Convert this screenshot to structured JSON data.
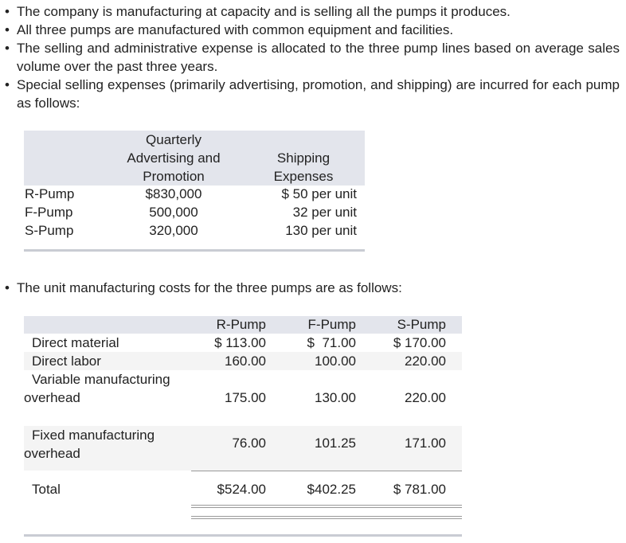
{
  "bullets": [
    "The company is manufacturing at capacity and is selling all the pumps it produces.",
    "All three pumps are manufactured with common equipment and facilities.",
    "The selling and administrative expense is allocated to the three pump lines based on average sales volume over the past three years.",
    "Special selling expenses (primarily advertising, promotion, and shipping) are incurred for each pump as follows:"
  ],
  "table1": {
    "headers": [
      "Quarterly Advertising and Promotion",
      "Shipping Expenses"
    ],
    "rows": [
      [
        "R-Pump",
        "$830,000",
        "$ 50 per unit"
      ],
      [
        "F-Pump",
        "500,000",
        "32 per unit"
      ],
      [
        "S-Pump",
        "320,000",
        "130 per unit"
      ]
    ]
  },
  "bullet5": "The unit manufacturing costs for the three pumps are as follows:",
  "table2": {
    "headers": [
      "R-Pump",
      "F-Pump",
      "S-Pump"
    ],
    "rows": [
      [
        "Direct material",
        "$ 113.00",
        "$  71.00",
        "$ 170.00"
      ],
      [
        "Direct labor",
        "160.00",
        "100.00",
        "220.00"
      ],
      [
        "Variable manufacturing overhead",
        "175.00",
        "130.00",
        "220.00"
      ],
      [
        "Fixed manufacturing overhead",
        "76.00",
        "101.25",
        "171.00"
      ]
    ],
    "total": [
      "Total",
      "$524.00",
      "$402.25",
      "$ 781.00"
    ]
  }
}
